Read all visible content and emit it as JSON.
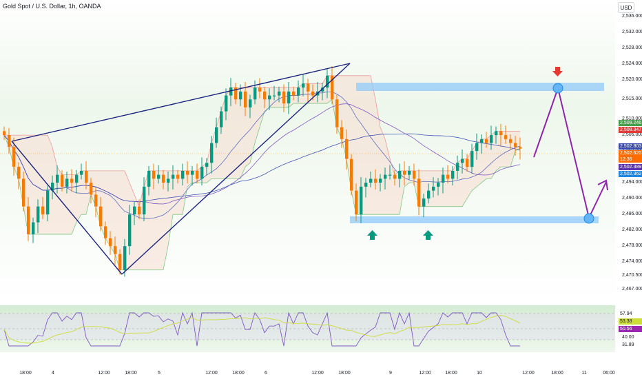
{
  "header": {
    "title": "Gold Spot / U.S. Dollar, 1h, OANDA",
    "currency_button": "USD"
  },
  "colors": {
    "up_candle": "#089981",
    "down_candle": "#f57c00",
    "trendline": "#1a237e",
    "projection": "#7b1fa2",
    "zone": "#90caf9",
    "cloud_up": "#c8e6c9",
    "cloud_down": "#f5dccf",
    "up_arrow": "#089981",
    "down_arrow": "#e53935"
  },
  "price_axis": {
    "ticks": [
      "2,536.000",
      "2,532.000",
      "2,528.000",
      "2,524.000",
      "2,520.000",
      "2,515.000",
      "2,510.000",
      "2,506.000",
      "2,502.000",
      "2,498.000",
      "2,494.000",
      "2,490.000",
      "2,486.000",
      "2,482.000",
      "2,478.000",
      "2,474.000",
      "2,470.500",
      "2,467.000"
    ],
    "badges": [
      {
        "text": "2,509.246",
        "color": "#43a047"
      },
      {
        "text": "2,508.347",
        "color": "#e53935"
      },
      {
        "text": "2,502.803",
        "color": "#3949ab"
      },
      {
        "text": "2,502.620",
        "color": "#ff6d00"
      },
      {
        "text": "12:36",
        "color": "#ff6d00"
      },
      {
        "text": "2,502.389",
        "color": "#5e35b1"
      },
      {
        "text": "2,502.362",
        "color": "#1e88e5"
      }
    ]
  },
  "rsi_axis": {
    "badges": [
      {
        "text": "57.94",
        "color": "#ffffff",
        "fg": "#131722"
      },
      {
        "text": "53.38",
        "color": "#cddc39",
        "fg": "#131722"
      },
      {
        "text": "50.56",
        "color": "#9c27b0",
        "fg": "#ffffff"
      }
    ],
    "ticks": [
      "40.00",
      "31.89"
    ]
  },
  "time_axis": {
    "labels": [
      "18:00",
      "4",
      "12:00",
      "18:00",
      "5",
      "12:00",
      "18:00",
      "6",
      "12:00",
      "18:00",
      "9",
      "12:00",
      "18:00",
      "10",
      "12:00",
      "18:00",
      "11",
      "06:00"
    ]
  },
  "chart_data": {
    "type": "candlestick",
    "title": "Gold Spot / U.S. Dollar, 1h, OANDA",
    "ylim": [
      2465,
      2538
    ],
    "y_ticks": [
      2536,
      2532,
      2528,
      2524,
      2520,
      2515,
      2510,
      2506,
      2502,
      2498,
      2494,
      2490,
      2486,
      2482,
      2478,
      2474,
      2470.5,
      2467
    ],
    "last_price": 2502.62,
    "resistance_zone": [
      2519,
      2521
    ],
    "support_zone": [
      2485.5,
      2487
    ],
    "price_path": [
      2506,
      2503,
      2498,
      2495,
      2488,
      2481,
      2484,
      2488,
      2486,
      2492,
      2494,
      2496,
      2493,
      2495,
      2494,
      2496,
      2497,
      2494,
      2491,
      2488,
      2483,
      2480,
      2478,
      2476,
      2472,
      2478,
      2486,
      2488,
      2486,
      2493,
      2497,
      2495,
      2496,
      2494,
      2495,
      2496,
      2495,
      2497,
      2496,
      2497,
      2495,
      2498,
      2499,
      2504,
      2508,
      2512,
      2516,
      2518,
      2515,
      2517,
      2513,
      2515,
      2518,
      2517,
      2515,
      2516,
      2516,
      2517,
      2514,
      2517,
      2516,
      2518,
      2519,
      2517,
      2516,
      2517,
      2518,
      2521,
      2515,
      2508,
      2505,
      2500,
      2492,
      2486,
      2493,
      2494,
      2495,
      2494,
      2495,
      2496,
      2496,
      2495,
      2497,
      2496,
      2497,
      2495,
      2488,
      2490,
      2492,
      2493,
      2494,
      2496,
      2495,
      2497,
      2499,
      2500,
      2498,
      2502,
      2504,
      2505,
      2504,
      2506,
      2507,
      2506,
      2505,
      2504,
      2503,
      2502.6
    ],
    "rsi": {
      "levels": [
        57.94,
        53.38,
        50.56,
        40.0,
        31.89
      ]
    }
  }
}
